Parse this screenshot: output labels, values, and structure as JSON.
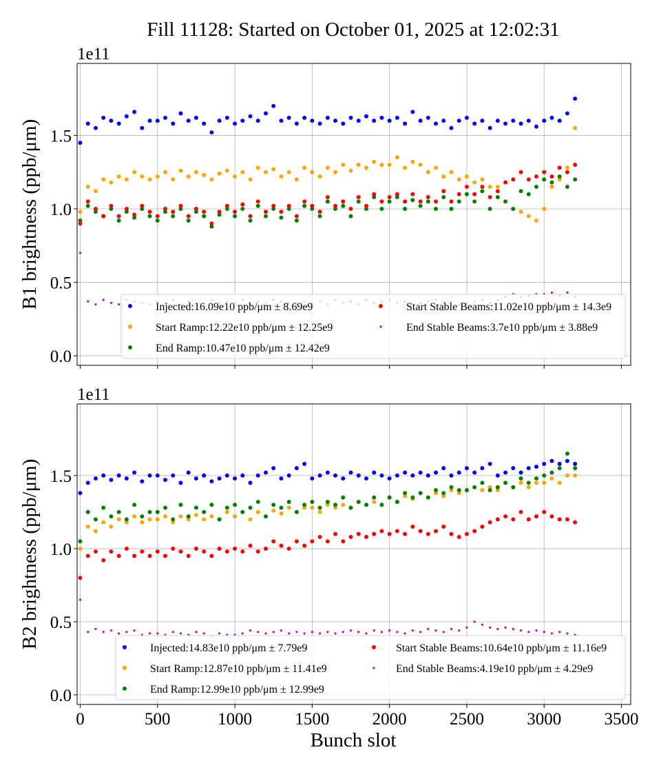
{
  "chart_data": [
    {
      "type": "scatter",
      "title": "Fill 11128: Started on October 01, 2025 at 12:02:31",
      "ylabel": "B1 brightness (ppb/μm)",
      "xlabel": "",
      "y_offset_label": "1e11",
      "xlim": [
        -20,
        3560
      ],
      "ylim": [
        -0.065,
        1.99
      ],
      "xticks": [
        0,
        500,
        1000,
        1500,
        2000,
        2500,
        3000,
        3500
      ],
      "xtick_labels_shown": false,
      "yticks": [
        "0.0",
        "0.5",
        "1.0",
        "1.5"
      ],
      "ytick_values": [
        0.0,
        0.5,
        1.0,
        1.5
      ],
      "grid": true,
      "legend_placement": "lower-right",
      "x": [
        0,
        50,
        100,
        150,
        200,
        250,
        300,
        350,
        400,
        450,
        500,
        550,
        600,
        650,
        700,
        750,
        800,
        850,
        900,
        950,
        1000,
        1050,
        1100,
        1150,
        1200,
        1250,
        1300,
        1350,
        1400,
        1450,
        1500,
        1550,
        1600,
        1650,
        1700,
        1750,
        1800,
        1850,
        1900,
        1950,
        2000,
        2050,
        2100,
        2150,
        2200,
        2250,
        2300,
        2350,
        2400,
        2450,
        2500,
        2550,
        2600,
        2650,
        2700,
        2750,
        2800,
        2850,
        2900,
        2950,
        3000,
        3050,
        3100,
        3150,
        3200
      ],
      "series": [
        {
          "name": "Injected:16.09e10 ppb/μm ± 8.69e9",
          "color": "#0000ff",
          "values": [
            1.45,
            1.58,
            1.55,
            1.62,
            1.6,
            1.58,
            1.63,
            1.66,
            1.55,
            1.6,
            1.6,
            1.62,
            1.58,
            1.65,
            1.6,
            1.62,
            1.58,
            1.52,
            1.6,
            1.62,
            1.58,
            1.6,
            1.63,
            1.6,
            1.65,
            1.7,
            1.6,
            1.62,
            1.58,
            1.62,
            1.6,
            1.58,
            1.62,
            1.6,
            1.58,
            1.62,
            1.6,
            1.63,
            1.6,
            1.62,
            1.6,
            1.62,
            1.58,
            1.66,
            1.6,
            1.62,
            1.58,
            1.6,
            1.55,
            1.6,
            1.62,
            1.58,
            1.6,
            1.55,
            1.6,
            1.58,
            1.6,
            1.58,
            1.6,
            1.56,
            1.6,
            1.62,
            1.6,
            1.65,
            1.75
          ]
        },
        {
          "name": "Start Ramp:12.22e10 ppb/μm ± 12.25e9",
          "color": "#ffa500",
          "values": [
            0.98,
            1.15,
            1.12,
            1.2,
            1.18,
            1.22,
            1.2,
            1.25,
            1.22,
            1.2,
            1.22,
            1.25,
            1.2,
            1.26,
            1.22,
            1.25,
            1.23,
            1.2,
            1.24,
            1.26,
            1.22,
            1.25,
            1.2,
            1.28,
            1.25,
            1.27,
            1.22,
            1.25,
            1.2,
            1.28,
            1.25,
            1.22,
            1.28,
            1.25,
            1.3,
            1.26,
            1.3,
            1.28,
            1.32,
            1.3,
            1.3,
            1.35,
            1.28,
            1.32,
            1.3,
            1.25,
            1.28,
            1.22,
            1.25,
            1.2,
            1.22,
            1.18,
            1.2,
            1.15,
            1.15,
            1.05,
            1.0,
            0.98,
            0.95,
            0.92,
            1.0,
            1.15,
            1.2,
            1.28,
            1.55
          ]
        },
        {
          "name": "End Ramp:10.47e10 ppb/μm ± 12.42e9",
          "color": "#008000",
          "values": [
            0.92,
            1.02,
            0.98,
            0.95,
            1.0,
            0.92,
            0.98,
            0.94,
            1.0,
            0.95,
            0.92,
            0.98,
            0.95,
            1.0,
            0.92,
            0.98,
            0.95,
            0.88,
            0.96,
            1.0,
            0.95,
            1.0,
            0.92,
            1.02,
            0.95,
            1.0,
            0.94,
            1.0,
            0.92,
            1.02,
            1.0,
            0.95,
            1.05,
            1.0,
            1.02,
            0.95,
            1.05,
            1.0,
            1.08,
            1.0,
            1.05,
            1.08,
            1.0,
            1.06,
            1.02,
            1.05,
            1.0,
            1.08,
            1.0,
            1.05,
            1.1,
            1.05,
            1.12,
            1.0,
            1.08,
            1.05,
            1.0,
            1.12,
            1.1,
            1.15,
            1.2,
            1.18,
            1.22,
            1.15,
            1.2
          ]
        },
        {
          "name": "Start Stable Beams:11.02e10 ppb/μm ± 14.3e9",
          "color": "#ff0000",
          "values": [
            0.9,
            1.05,
            1.0,
            0.95,
            1.02,
            0.95,
            1.0,
            0.96,
            1.02,
            0.98,
            0.95,
            1.0,
            0.98,
            1.02,
            0.95,
            1.0,
            0.98,
            0.9,
            0.98,
            1.02,
            0.98,
            1.03,
            0.95,
            1.05,
            0.98,
            1.02,
            0.98,
            1.02,
            0.95,
            1.05,
            1.02,
            0.98,
            1.08,
            1.02,
            1.05,
            1.0,
            1.08,
            1.02,
            1.1,
            1.05,
            1.08,
            1.1,
            1.05,
            1.1,
            1.05,
            1.08,
            1.05,
            1.12,
            1.05,
            1.1,
            1.15,
            1.1,
            1.15,
            1.08,
            1.12,
            1.18,
            1.2,
            1.25,
            1.2,
            1.22,
            1.25,
            1.22,
            1.28,
            1.25,
            1.3
          ]
        },
        {
          "name": "End Stable Beams:3.7e10 ppb/μm ± 3.88e9",
          "color": "#bf00bf",
          "values": [
            0.7,
            0.37,
            0.35,
            0.38,
            0.36,
            0.35,
            0.38,
            0.37,
            0.36,
            0.35,
            0.37,
            0.36,
            0.38,
            0.35,
            0.37,
            0.36,
            0.34,
            0.38,
            0.36,
            0.37,
            0.36,
            0.38,
            0.35,
            0.37,
            0.36,
            0.38,
            0.37,
            0.36,
            0.35,
            0.37,
            0.36,
            0.37,
            0.35,
            0.38,
            0.36,
            0.37,
            0.35,
            0.38,
            0.36,
            0.37,
            0.38,
            0.36,
            0.37,
            0.35,
            0.36,
            0.37,
            0.38,
            0.36,
            0.37,
            0.35,
            0.36,
            0.37,
            0.38,
            0.36,
            0.38,
            0.4,
            0.42,
            0.4,
            0.41,
            0.42,
            0.42,
            0.43,
            0.41,
            0.43,
            0.4
          ]
        }
      ]
    },
    {
      "type": "scatter",
      "title": "",
      "ylabel": "B2 brightness (ppb/μm)",
      "xlabel": "Bunch slot",
      "y_offset_label": "1e11",
      "xlim": [
        -20,
        3560
      ],
      "ylim": [
        -0.066,
        1.99
      ],
      "xticks": [
        0,
        500,
        1000,
        1500,
        2000,
        2500,
        3000,
        3500
      ],
      "xtick_labels": [
        "0",
        "500",
        "1000",
        "1500",
        "2000",
        "2500",
        "3000",
        "3500"
      ],
      "xtick_labels_shown": true,
      "yticks": [
        "0.0",
        "0.5",
        "1.0",
        "1.5"
      ],
      "ytick_values": [
        0.0,
        0.5,
        1.0,
        1.5
      ],
      "grid": true,
      "legend_placement": "lower-right",
      "x": [
        0,
        50,
        100,
        150,
        200,
        250,
        300,
        350,
        400,
        450,
        500,
        550,
        600,
        650,
        700,
        750,
        800,
        850,
        900,
        950,
        1000,
        1050,
        1100,
        1150,
        1200,
        1250,
        1300,
        1350,
        1400,
        1450,
        1500,
        1550,
        1600,
        1650,
        1700,
        1750,
        1800,
        1850,
        1900,
        1950,
        2000,
        2050,
        2100,
        2150,
        2200,
        2250,
        2300,
        2350,
        2400,
        2450,
        2500,
        2550,
        2600,
        2650,
        2700,
        2750,
        2800,
        2850,
        2900,
        2950,
        3000,
        3050,
        3100,
        3150,
        3200
      ],
      "series": [
        {
          "name": "Injected:14.83e10 ppb/μm ± 7.79e9",
          "color": "#0000ff",
          "values": [
            1.38,
            1.45,
            1.48,
            1.5,
            1.47,
            1.5,
            1.48,
            1.52,
            1.46,
            1.5,
            1.5,
            1.47,
            1.5,
            1.45,
            1.52,
            1.48,
            1.5,
            1.46,
            1.48,
            1.5,
            1.48,
            1.5,
            1.45,
            1.5,
            1.52,
            1.55,
            1.48,
            1.5,
            1.55,
            1.58,
            1.48,
            1.5,
            1.52,
            1.5,
            1.48,
            1.52,
            1.5,
            1.48,
            1.52,
            1.5,
            1.48,
            1.5,
            1.52,
            1.5,
            1.52,
            1.5,
            1.52,
            1.55,
            1.5,
            1.52,
            1.55,
            1.52,
            1.55,
            1.58,
            1.5,
            1.52,
            1.55,
            1.52,
            1.55,
            1.56,
            1.58,
            1.6,
            1.58,
            1.6,
            1.58
          ]
        },
        {
          "name": "Start Ramp:12.87e10 ppb/μm ± 11.41e9",
          "color": "#ffa500",
          "values": [
            1.0,
            1.15,
            1.12,
            1.18,
            1.15,
            1.2,
            1.18,
            1.22,
            1.18,
            1.2,
            1.2,
            1.22,
            1.18,
            1.22,
            1.2,
            1.23,
            1.2,
            1.22,
            1.2,
            1.25,
            1.22,
            1.25,
            1.2,
            1.25,
            1.22,
            1.26,
            1.24,
            1.28,
            1.25,
            1.28,
            1.28,
            1.25,
            1.3,
            1.28,
            1.3,
            1.28,
            1.32,
            1.3,
            1.32,
            1.3,
            1.35,
            1.32,
            1.36,
            1.34,
            1.38,
            1.35,
            1.38,
            1.36,
            1.4,
            1.38,
            1.4,
            1.42,
            1.4,
            1.42,
            1.4,
            1.45,
            1.42,
            1.45,
            1.42,
            1.45,
            1.45,
            1.48,
            1.45,
            1.5,
            1.5
          ]
        },
        {
          "name": "End Ramp:12.99e10 ppb/μm ± 12.99e9",
          "color": "#008000",
          "values": [
            1.05,
            1.25,
            1.2,
            1.28,
            1.22,
            1.25,
            1.2,
            1.3,
            1.22,
            1.25,
            1.25,
            1.28,
            1.2,
            1.3,
            1.22,
            1.28,
            1.25,
            1.3,
            1.2,
            1.28,
            1.3,
            1.25,
            1.28,
            1.32,
            1.22,
            1.3,
            1.28,
            1.32,
            1.25,
            1.3,
            1.32,
            1.28,
            1.32,
            1.3,
            1.35,
            1.28,
            1.32,
            1.3,
            1.35,
            1.3,
            1.35,
            1.32,
            1.38,
            1.35,
            1.38,
            1.35,
            1.4,
            1.38,
            1.42,
            1.4,
            1.4,
            1.42,
            1.45,
            1.4,
            1.42,
            1.45,
            1.42,
            1.48,
            1.45,
            1.48,
            1.5,
            1.52,
            1.55,
            1.65,
            1.55
          ]
        },
        {
          "name": "Start Stable Beams:10.64e10 ppb/μm ± 11.16e9",
          "color": "#ff0000",
          "values": [
            0.8,
            0.95,
            0.98,
            0.92,
            0.98,
            0.95,
            1.0,
            0.95,
            0.98,
            0.95,
            0.98,
            0.95,
            1.0,
            0.98,
            0.95,
            1.0,
            0.98,
            0.95,
            1.0,
            0.98,
            1.0,
            0.98,
            1.02,
            0.98,
            1.0,
            1.05,
            1.02,
            1.0,
            1.05,
            1.02,
            1.05,
            1.08,
            1.05,
            1.1,
            1.05,
            1.08,
            1.1,
            1.08,
            1.1,
            1.12,
            1.1,
            1.12,
            1.1,
            1.15,
            1.12,
            1.1,
            1.12,
            1.15,
            1.1,
            1.08,
            1.1,
            1.12,
            1.15,
            1.18,
            1.2,
            1.22,
            1.2,
            1.25,
            1.2,
            1.22,
            1.25,
            1.22,
            1.2,
            1.2,
            1.18
          ]
        },
        {
          "name": "End Stable Beams:4.19e10 ppb/μm ± 4.29e9",
          "color": "#bf00bf",
          "values": [
            0.65,
            0.43,
            0.45,
            0.43,
            0.44,
            0.42,
            0.43,
            0.44,
            0.41,
            0.42,
            0.42,
            0.41,
            0.43,
            0.42,
            0.41,
            0.43,
            0.42,
            0.4,
            0.42,
            0.41,
            0.41,
            0.42,
            0.44,
            0.43,
            0.42,
            0.43,
            0.44,
            0.42,
            0.43,
            0.42,
            0.43,
            0.42,
            0.43,
            0.42,
            0.43,
            0.44,
            0.43,
            0.42,
            0.44,
            0.43,
            0.44,
            0.43,
            0.42,
            0.44,
            0.43,
            0.45,
            0.44,
            0.43,
            0.45,
            0.44,
            0.46,
            0.5,
            0.48,
            0.46,
            0.45,
            0.46,
            0.45,
            0.44,
            0.43,
            0.44,
            0.43,
            0.42,
            0.43,
            0.42,
            0.41
          ]
        }
      ]
    }
  ]
}
